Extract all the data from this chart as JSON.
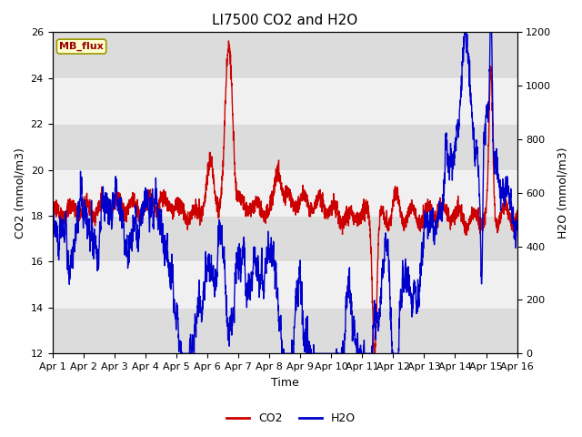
{
  "title": "LI7500 CO2 and H2O",
  "xlabel": "Time",
  "ylabel_left": "CO2 (mmol/m3)",
  "ylabel_right": "H2O (mmol/m3)",
  "ylim_left": [
    12,
    26
  ],
  "ylim_right": [
    0,
    1200
  ],
  "yticks_left": [
    12,
    14,
    16,
    18,
    20,
    22,
    24,
    26
  ],
  "yticks_right": [
    0,
    200,
    400,
    600,
    800,
    1000,
    1200
  ],
  "xtick_labels": [
    "Apr 1",
    "Apr 2",
    "Apr 3",
    "Apr 4",
    "Apr 5",
    "Apr 6",
    "Apr 7",
    "Apr 8",
    "Apr 9",
    "Apr 10",
    "Apr 11",
    "Apr 12",
    "Apr 13",
    "Apr 14",
    "Apr 15",
    "Apr 16"
  ],
  "co2_color": "#cc0000",
  "h2o_color": "#0000cc",
  "background_color": "#ffffff",
  "plot_bg_color": "#f0f0f0",
  "band_color": "#dcdcdc",
  "mb_flux_bg": "#ffffcc",
  "mb_flux_border": "#999900",
  "mb_flux_text": "#990000",
  "line_width": 1.0,
  "title_fontsize": 11,
  "axis_label_fontsize": 9,
  "tick_fontsize": 8
}
